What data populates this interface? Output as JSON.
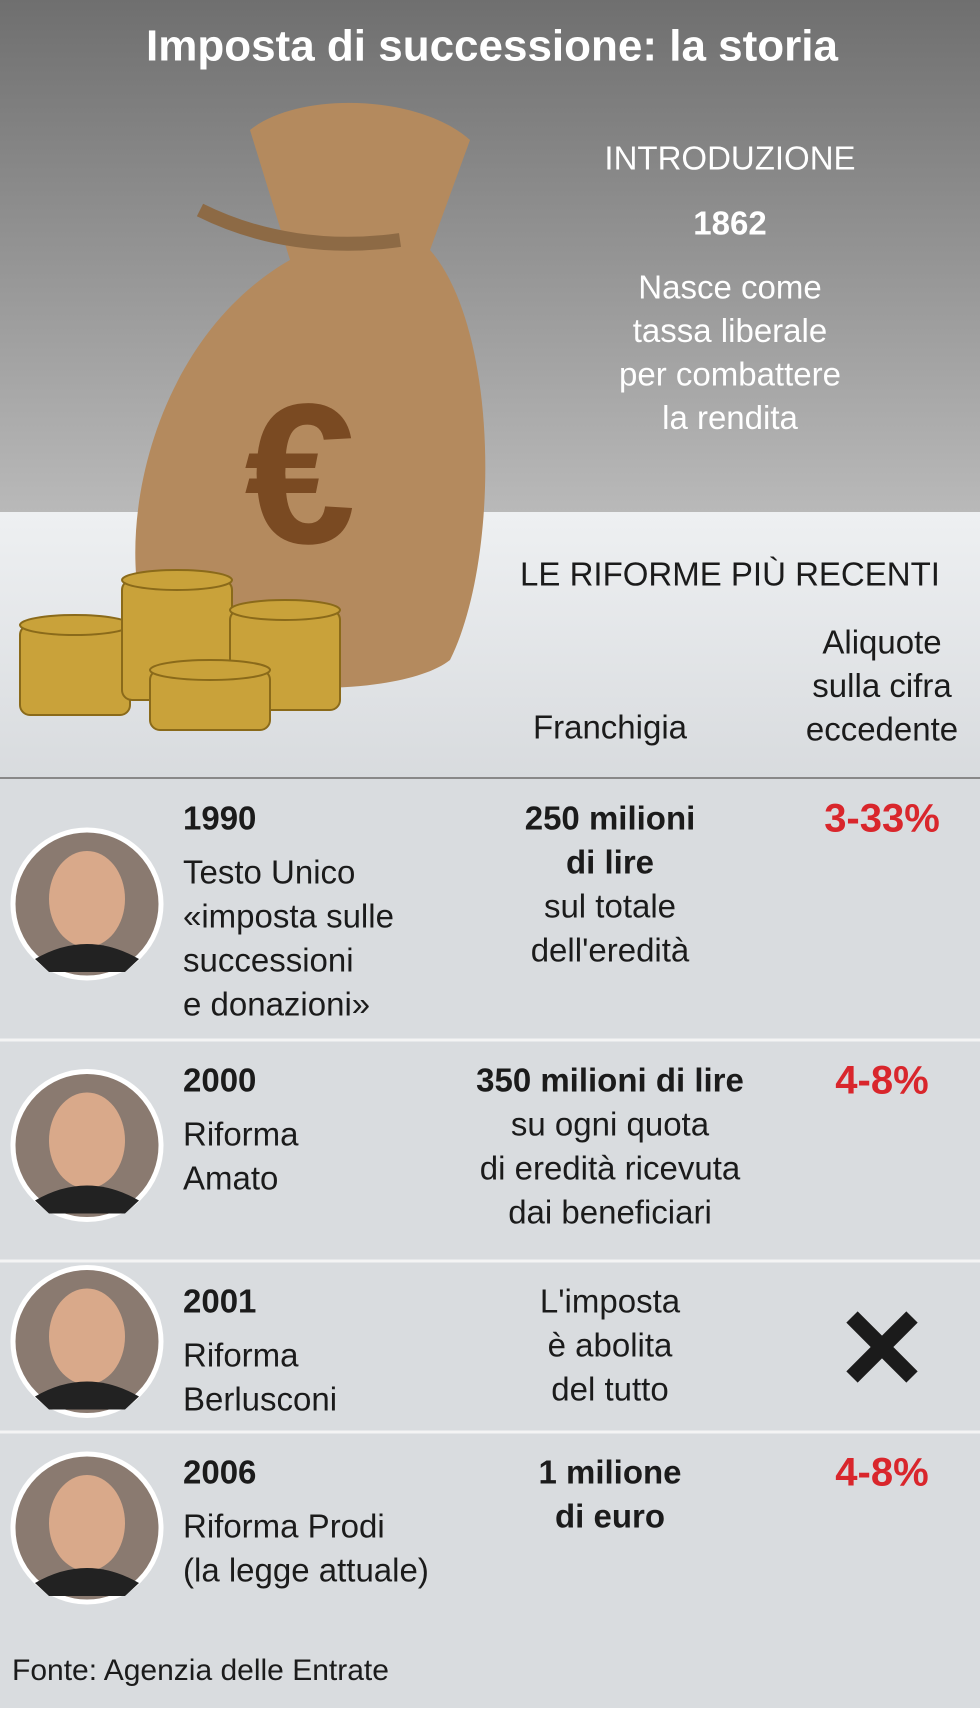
{
  "title": "Imposta di successione: la storia",
  "intro": {
    "label": "INTRODUZIONE",
    "year": "1862",
    "text": [
      "Nasce come",
      "tassa liberale",
      "per combattere",
      "la rendita"
    ]
  },
  "reforms_heading": "LE RIFORME PIÙ RECENTI",
  "columns": {
    "franchise": "Franchigia",
    "rates": [
      "Aliquote",
      "sulla cifra",
      "eccedente"
    ]
  },
  "rows": [
    {
      "year": "1990",
      "name": [
        "Testo Unico",
        "«imposta sulle",
        "successioni",
        "e donazioni»"
      ],
      "franchise_bold": [
        "250 milioni",
        "di lire"
      ],
      "franchise": [
        "sul totale",
        "dell'eredità"
      ],
      "rate": "3-33%"
    },
    {
      "year": "2000",
      "name": [
        "Riforma",
        "Amato"
      ],
      "franchise_bold": [
        "350 milioni di lire"
      ],
      "franchise": [
        "su ogni quota",
        "di eredità ricevuta",
        "dai beneficiari"
      ],
      "rate": "4-8%"
    },
    {
      "year": "2001",
      "name": [
        "Riforma",
        "Berlusconi"
      ],
      "franchise": [
        "L'imposta",
        "è abolita",
        "del tutto"
      ]
    },
    {
      "year": "2006",
      "name": [
        "Riforma Prodi",
        "(la legge attuale)"
      ],
      "franchise_bold": [
        "1 milione",
        "di euro"
      ],
      "rate": "4-8%"
    }
  ],
  "source": "Fonte: Agenzia delle Entrate"
}
